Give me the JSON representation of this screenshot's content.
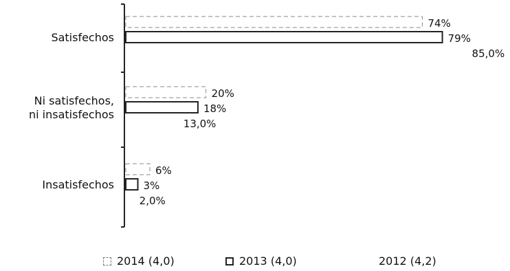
{
  "chart_data": {
    "type": "bar",
    "orientation": "horizontal",
    "title": "",
    "xlabel": "",
    "ylabel": "",
    "xlim": [
      0,
      100
    ],
    "grid": false,
    "legend_position": "bottom",
    "categories": [
      "Satisfechos",
      "Ni satisfechos,\nni insatisfechos",
      "Insatisfechos"
    ],
    "series": [
      {
        "name": "2014 (4,0)",
        "values": [
          74,
          20,
          6
        ],
        "labels": [
          "74%",
          "20%",
          "6%"
        ],
        "style": "dashed",
        "color": "#888888"
      },
      {
        "name": "2013 (4,0)",
        "values": [
          79,
          18,
          3
        ],
        "labels": [
          "79%",
          "18%",
          "3%"
        ],
        "style": "solid",
        "color": "#222222"
      },
      {
        "name": "2012 (4,2)",
        "values": [
          85,
          13,
          2
        ],
        "labels": [
          "85,0%",
          "13,0%",
          "2,0%"
        ],
        "style": "none",
        "color": "#ffffff"
      }
    ]
  }
}
